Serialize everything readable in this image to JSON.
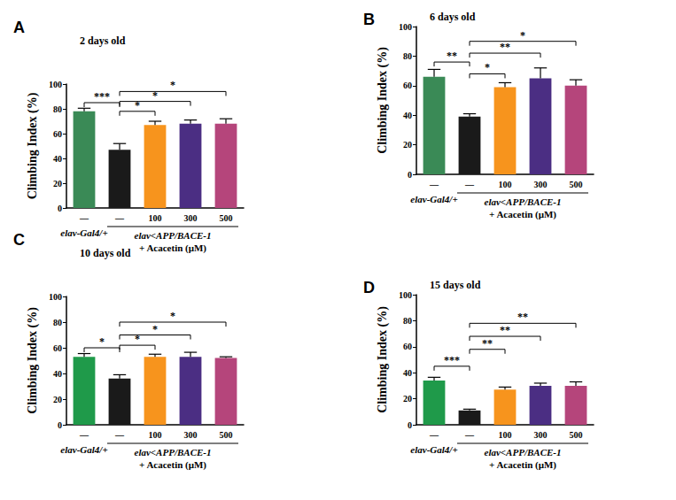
{
  "chart_data": [
    {
      "type": "bar",
      "panel": "A",
      "title": "2 days old",
      "y_label": "Climbing Index (%)",
      "categories": [
        "—",
        "—",
        "100",
        "300",
        "500"
      ],
      "values": [
        78,
        47,
        67,
        68,
        68
      ],
      "errors": [
        2.5,
        5,
        3,
        3,
        4
      ],
      "colors": [
        "#3a8a56",
        "#1a1a1a",
        "#f7941d",
        "#4b2e83",
        "#b5457b"
      ],
      "ylim": [
        0,
        100
      ],
      "yticks": [
        0,
        20,
        40,
        60,
        80,
        100
      ],
      "brackets": [
        {
          "from": 0,
          "to": 1,
          "y": 85,
          "label": "***"
        },
        {
          "from": 1,
          "to": 2,
          "y": 78,
          "label": "*"
        },
        {
          "from": 1,
          "to": 3,
          "y": 86,
          "label": "*"
        },
        {
          "from": 1,
          "to": 4,
          "y": 94,
          "label": "*"
        }
      ],
      "group_labels": [
        {
          "lines": [
            "elav-Gal4/+"
          ],
          "from": 0,
          "to": 0
        },
        {
          "lines": [
            "elav<APP/BACE-1",
            "+ Acacetin (μM)"
          ],
          "from": 1,
          "to": 4
        }
      ]
    },
    {
      "type": "bar",
      "panel": "B",
      "title": "6 days old",
      "y_label": "Climbing Index (%)",
      "categories": [
        "—",
        "—",
        "100",
        "300",
        "500"
      ],
      "values": [
        66,
        39,
        59,
        65,
        60
      ],
      "errors": [
        5,
        2,
        3,
        7,
        4
      ],
      "colors": [
        "#3a8a56",
        "#1a1a1a",
        "#f7941d",
        "#4b2e83",
        "#b5457b"
      ],
      "ylim": [
        0,
        100
      ],
      "yticks": [
        0,
        20,
        40,
        60,
        80,
        100
      ],
      "brackets": [
        {
          "from": 0,
          "to": 1,
          "y": 76,
          "label": "**"
        },
        {
          "from": 1,
          "to": 2,
          "y": 68,
          "label": "*"
        },
        {
          "from": 1,
          "to": 3,
          "y": 82,
          "label": "**"
        },
        {
          "from": 1,
          "to": 4,
          "y": 90,
          "label": "*"
        }
      ],
      "group_labels": [
        {
          "lines": [
            "elav-Gal4/+"
          ],
          "from": 0,
          "to": 0
        },
        {
          "lines": [
            "elav<APP/BACE-1",
            "+ Acacetin (μM)"
          ],
          "from": 1,
          "to": 4
        }
      ]
    },
    {
      "type": "bar",
      "panel": "C",
      "title": "10 days old",
      "y_label": "Climbing Index (%)",
      "categories": [
        "—",
        "—",
        "100",
        "300",
        "500"
      ],
      "values": [
        53,
        36,
        53,
        53,
        52
      ],
      "errors": [
        2.5,
        3,
        2,
        3.5,
        1
      ],
      "colors": [
        "#1f9a4a",
        "#1a1a1a",
        "#f7941d",
        "#4b2e83",
        "#b5457b"
      ],
      "ylim": [
        0,
        100
      ],
      "yticks": [
        0,
        20,
        40,
        60,
        80,
        100
      ],
      "brackets": [
        {
          "from": 0,
          "to": 1,
          "y": 60,
          "label": "*"
        },
        {
          "from": 1,
          "to": 2,
          "y": 62,
          "label": "*"
        },
        {
          "from": 1,
          "to": 3,
          "y": 70,
          "label": "*"
        },
        {
          "from": 1,
          "to": 4,
          "y": 80,
          "label": "*"
        }
      ],
      "group_labels": [
        {
          "lines": [
            "elav-Gal4/+"
          ],
          "from": 0,
          "to": 0
        },
        {
          "lines": [
            "elav<APP/BACE-1",
            "+ Acacetin (μM)"
          ],
          "from": 1,
          "to": 4
        }
      ]
    },
    {
      "type": "bar",
      "panel": "D",
      "title": "15 days old",
      "y_label": "Climbing Index (%)",
      "categories": [
        "—",
        "—",
        "100",
        "300",
        "500"
      ],
      "values": [
        34,
        11,
        27,
        30,
        30
      ],
      "errors": [
        2.5,
        1,
        2,
        2,
        3
      ],
      "colors": [
        "#1f9a4a",
        "#1a1a1a",
        "#f7941d",
        "#4b2e83",
        "#b5457b"
      ],
      "ylim": [
        0,
        100
      ],
      "yticks": [
        0,
        20,
        40,
        60,
        80,
        100
      ],
      "brackets": [
        {
          "from": 0,
          "to": 1,
          "y": 45,
          "label": "***"
        },
        {
          "from": 1,
          "to": 2,
          "y": 58,
          "label": "**"
        },
        {
          "from": 1,
          "to": 3,
          "y": 68,
          "label": "**"
        },
        {
          "from": 1,
          "to": 4,
          "y": 78,
          "label": "**"
        }
      ],
      "group_labels": [
        {
          "lines": [
            "elav-Gal4/+"
          ],
          "from": 0,
          "to": 0
        },
        {
          "lines": [
            "elav<APP/BACE-1",
            "+ Acacetin (μM)"
          ],
          "from": 1,
          "to": 4
        }
      ]
    }
  ]
}
